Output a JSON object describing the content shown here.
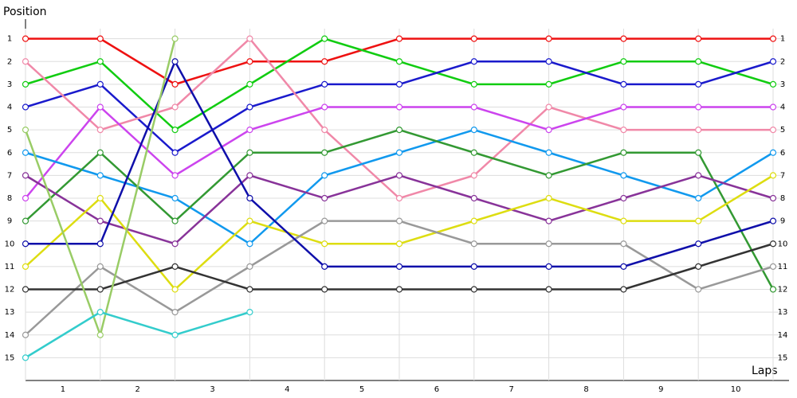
{
  "chart_data": {
    "type": "line",
    "ylabel": "Position",
    "xlabel": "Laps",
    "x": [
      0,
      1,
      2,
      3,
      4,
      5,
      6,
      7,
      8,
      9,
      10
    ],
    "xlim": [
      0,
      10
    ],
    "xticks": [
      {
        "value": 0.5,
        "label": "1"
      },
      {
        "value": 1.5,
        "label": "2"
      },
      {
        "value": 2.5,
        "label": "3"
      },
      {
        "value": 3.5,
        "label": "4"
      },
      {
        "value": 4.5,
        "label": "5"
      },
      {
        "value": 5.5,
        "label": "6"
      },
      {
        "value": 6.5,
        "label": "7"
      },
      {
        "value": 7.5,
        "label": "8"
      },
      {
        "value": 8.5,
        "label": "9"
      },
      {
        "value": 9.5,
        "label": "10"
      }
    ],
    "ylim": [
      16,
      0
    ],
    "yticks": [
      1,
      2,
      3,
      4,
      5,
      6,
      7,
      8,
      9,
      10,
      11,
      12,
      13,
      14,
      15
    ],
    "grid": true,
    "series": [
      {
        "color": "#ee1111",
        "values": [
          1,
          1,
          3,
          2,
          2,
          1,
          1,
          1,
          1,
          1,
          1
        ]
      },
      {
        "color": "#11cc11",
        "values": [
          3,
          2,
          5,
          3,
          1,
          2,
          3,
          3,
          2,
          2,
          3
        ]
      },
      {
        "color": "#1a1acc",
        "values": [
          4,
          3,
          6,
          4,
          3,
          3,
          2,
          2,
          3,
          3,
          2
        ]
      },
      {
        "color": "#f088a8",
        "values": [
          2,
          5,
          4,
          1,
          5,
          8,
          7,
          4,
          5,
          5,
          5
        ]
      },
      {
        "color": "#cc44ee",
        "values": [
          8,
          4,
          7,
          5,
          4,
          4,
          4,
          5,
          4,
          4,
          4
        ]
      },
      {
        "color": "#1199ee",
        "values": [
          6,
          7,
          8,
          10,
          7,
          6,
          5,
          6,
          7,
          8,
          6
        ]
      },
      {
        "color": "#339933",
        "values": [
          9,
          6,
          9,
          6,
          6,
          5,
          6,
          7,
          6,
          6,
          12
        ]
      },
      {
        "color": "#883399",
        "values": [
          7,
          9,
          10,
          7,
          8,
          7,
          8,
          9,
          8,
          7,
          8
        ]
      },
      {
        "color": "#dddd11",
        "values": [
          11,
          8,
          12,
          9,
          10,
          10,
          9,
          8,
          9,
          9,
          7
        ]
      },
      {
        "color": "#999999",
        "values": [
          14,
          11,
          13,
          11,
          9,
          9,
          10,
          10,
          10,
          12,
          11
        ]
      },
      {
        "color": "#333333",
        "values": [
          12,
          12,
          11,
          12,
          12,
          12,
          12,
          12,
          12,
          11,
          10
        ]
      },
      {
        "color": "#0f0faa",
        "values": [
          10,
          10,
          2,
          8,
          11,
          11,
          11,
          11,
          11,
          10,
          9
        ]
      },
      {
        "color": "#99cc66",
        "values": [
          5,
          14,
          1,
          null,
          null,
          null,
          null,
          null,
          null,
          null,
          null
        ]
      },
      {
        "color": "#33cccc",
        "values": [
          15,
          13,
          14,
          13,
          null,
          null,
          null,
          null,
          null,
          null,
          null
        ]
      }
    ]
  }
}
